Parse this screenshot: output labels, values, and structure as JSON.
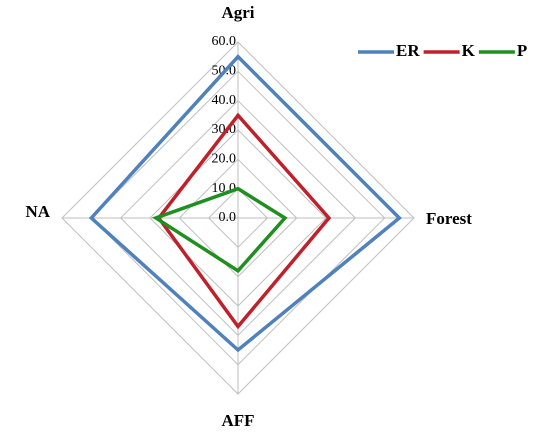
{
  "chart_data": {
    "type": "radar",
    "categories": [
      "Agri",
      "Forest",
      "AFF",
      "NA"
    ],
    "series": [
      {
        "name": "ER",
        "color": "#4f81bd",
        "values": [
          55,
          55,
          45,
          50
        ]
      },
      {
        "name": "K",
        "color": "#c0202a",
        "values": [
          35,
          31,
          37,
          27
        ]
      },
      {
        "name": "P",
        "color": "#1f8f1f",
        "values": [
          10,
          16,
          18,
          28
        ]
      }
    ],
    "ylim": [
      0,
      60
    ],
    "yticks": [
      {
        "value": 0,
        "label": "0.0"
      },
      {
        "value": 10,
        "label": "10.0"
      },
      {
        "value": 20,
        "label": "20.0"
      },
      {
        "value": 30,
        "label": "30.0"
      },
      {
        "value": 40,
        "label": "40.0"
      },
      {
        "value": 50,
        "label": "50.0"
      },
      {
        "value": 60,
        "label": "60.0"
      }
    ],
    "grid": true,
    "legend": "top-right"
  }
}
